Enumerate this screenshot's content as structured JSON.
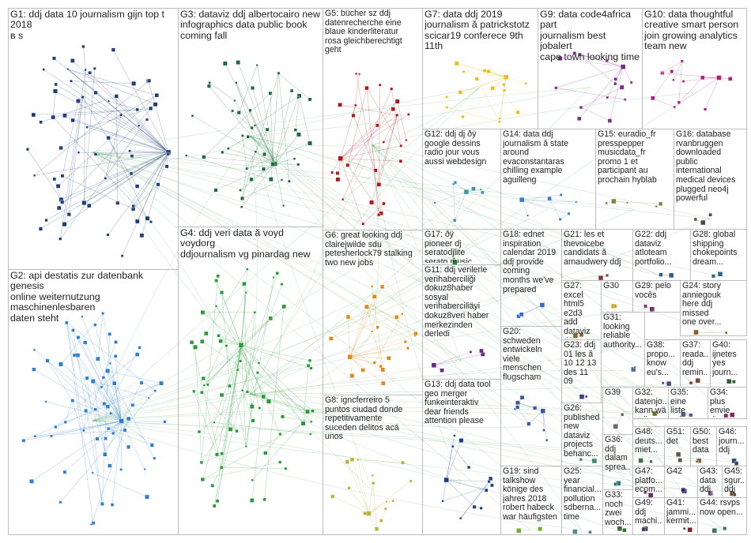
{
  "groups": [
    {
      "id": "G1",
      "label": "G1: ddj data 10 journalism gijn top t 2018\nв s",
      "color": "#1f3f7a"
    },
    {
      "id": "G2",
      "label": "G2: api destatis zur datenbank genesis\nonline weiternutzung maschinenlesbaren\ndaten steht",
      "color": "#2f7fcf"
    },
    {
      "id": "G3",
      "label": "G3: dataviz ddj albertocairo new\ninfographics data public book\ncoming fall",
      "color": "#1e6a3a"
    },
    {
      "id": "G4",
      "label": "G4: ddj veri data ă voyd voydorg\nddjournalism vg pinardag new",
      "color": "#2a9a3a"
    },
    {
      "id": "G5",
      "label": "G5: bücher sz ddj\ndatenrecherche eine\nblaue kinderliteratur\nrosa gleichberechtigt\ngeht",
      "color": "#b01818"
    },
    {
      "id": "G6",
      "label": "G6: great looking ddj\nclairejwilde sdu\npetesherlock79 stalking\ntwo new jobs",
      "color": "#e08a1c"
    },
    {
      "id": "G7",
      "label": "G7: data ddj 2019\njournalism ă patrickstotz\nscicar19 conferece 9th 11th",
      "color": "#e8c020"
    },
    {
      "id": "G8",
      "label": "G8: igncferreiro 5\npuntos ciudad donde\nrepetitivamente\nsuceden delitos acá\nunos",
      "color": "#b8b438"
    },
    {
      "id": "G9",
      "label": "G9: data code4africa part\njournalism best jobalert\ncape town looking time",
      "color": "#7a2a8a"
    },
    {
      "id": "G10",
      "label": "G10: data thoughtful\ncreative smart person\njoin growing analytics\nteam new",
      "color": "#b0207a"
    },
    {
      "id": "G11",
      "label": "G11: ddj verilerle\nverihaberciliği\ndokuz8haber\nsosyal\nverihaberciliäyi\ndokuz8veri haber\nmerkezinden\nderledi",
      "color": "#6a2a8a"
    },
    {
      "id": "G12",
      "label": "G12: ddj dj ðÿ\ngoogle dessins\nradio jour vous\naussi webdesign",
      "color": "#3a9aaa"
    },
    {
      "id": "G13",
      "label": "G13: ddj data tool\ngeo merger\nfunkeinteraktiv\ndear friends\nattention please",
      "color": "#1a3a8a"
    },
    {
      "id": "G14",
      "label": "G14: data ddj\njournalism ă state\naround\nevaconstantaras\nchilling example\naguilleng",
      "color": "#3a7acf"
    },
    {
      "id": "G15",
      "label": "G15: euradio_fr\npresspepper\nmusicdata_fr\npromo 1 et\nparticipant au\nprochain hyblab",
      "color": "#7a8a3a"
    },
    {
      "id": "G16",
      "label": "G16: database\nrvanbruggen\ndownloaded\npublic\ninternational\nmedical devices\nplugged neo4j\npowerful",
      "color": "#4a4a4a"
    },
    {
      "id": "G17",
      "label": "G17: ðÿ\npioneer dj\nseratodjlite\nserato music\ndjlife djing",
      "color": "#2a8a3a"
    },
    {
      "id": "G18",
      "label": "G18: ednet\ninspiration\ncalendar 2019\nddj provide\ncoming\nmonths we've\nprepared",
      "color": "#3a6acf"
    },
    {
      "id": "G19",
      "label": "G19: sind\ntalkshow\nkönige des\njahres 2018\nrobert habeck\nwar häufigsten",
      "color": "#7aaa3a"
    },
    {
      "id": "G20",
      "label": "G20:\nschweden\nentwickeln\nviele\nmenschen\nflugscham",
      "color": "#3a5a9a"
    },
    {
      "id": "G21",
      "label": "G21: les et\nthevoicebe\ncandidats ă\narnaudwery ddj",
      "color": "#8a3a3a"
    },
    {
      "id": "G22",
      "label": "G22: ddj\ndataviz\natloteam\nportfolio...",
      "color": "#2a5a8a"
    },
    {
      "id": "G23",
      "label": "G23: ddj\n01 les ă\n10 12 13\ndes 11\n09",
      "color": "#3a3a8a"
    },
    {
      "id": "G24",
      "label": "G24: story\nanniegouk\nhere ddj\nmissed\none over...",
      "color": "#8a5a2a"
    },
    {
      "id": "G25",
      "label": "G25:\nyear\nfinancial...\npollution\nsdberna...\ntime",
      "color": "#5a8a8a"
    },
    {
      "id": "G26",
      "label": "G26:\npublished\nnew\ndataviz\nprojects\nbehanc...",
      "color": "#3a8a6a"
    },
    {
      "id": "G27",
      "label": "G27: excel\nhtml5 e2d3\nadd\ndataviz\nd3js",
      "color": "#8a6a2a"
    },
    {
      "id": "G28",
      "label": "G28: global\nshipping\nchokepoints\ndream...",
      "color": "#2a6a8a"
    },
    {
      "id": "G29",
      "label": "G29: pelo\nvocês",
      "color": "#6a3a6a"
    },
    {
      "id": "G30",
      "label": "G30",
      "color": "#c8a020"
    },
    {
      "id": "G31",
      "label": "G31:\nlooking\nreliable\nauthority...",
      "color": "#4a6a8a"
    },
    {
      "id": "G32",
      "label": "G32:\ndatenjo...\nkann wä\nvoller...",
      "color": "#6a6a2a"
    },
    {
      "id": "G33",
      "label": "G33:\nnoch\nzwei\nwoch...",
      "color": "#3a6a3a"
    },
    {
      "id": "G34",
      "label": "G34: plus\nenvie\nd'en...",
      "color": "#8a2a5a"
    },
    {
      "id": "G35",
      "label": "G35: eine\nliste\nvoller...",
      "color": "#5a5a8a"
    },
    {
      "id": "G36",
      "label": "G36:\nddj\ndalam\nsprea...",
      "color": "#2a7a7a"
    },
    {
      "id": "G37",
      "label": "G37:\nreada...\nddj\nremin...",
      "color": "#7a4a3a"
    },
    {
      "id": "G38",
      "label": "G38:\npropo...\nknow\neu's...",
      "color": "#4a4a7a"
    },
    {
      "id": "G39",
      "label": "G39",
      "color": "#6a6a6a"
    },
    {
      "id": "G40",
      "label": "G40:\nijnetes\nyes\njourn...",
      "color": "#3a5a3a"
    },
    {
      "id": "G41",
      "label": "G41:\njammi...\nkermit...",
      "color": "#7a2a2a"
    },
    {
      "id": "G42",
      "label": "G42",
      "color": "#2a2a6a"
    },
    {
      "id": "G43",
      "label": "G43:\ndata\nddj",
      "color": "#5a3a7a"
    },
    {
      "id": "G44",
      "label": "G44: rsvps\nnow open...",
      "color": "#3a7a5a"
    },
    {
      "id": "G45",
      "label": "G45:\nsgur...\nddj",
      "color": "#6a4a2a"
    },
    {
      "id": "G46",
      "label": "G46:\njourn...\nddj",
      "color": "#2a4a6a"
    },
    {
      "id": "G47",
      "label": "G47:\nplatfo...\necom...",
      "color": "#6a2a6a"
    },
    {
      "id": "G48",
      "label": "G48:\ndeuts...\nmiet...",
      "color": "#4a6a4a"
    },
    {
      "id": "G49",
      "label": "G49:\nddj\nmachi...",
      "color": "#3a3a5a"
    },
    {
      "id": "G50",
      "label": "G50:\nbest\ndata",
      "color": "#7a6a3a"
    },
    {
      "id": "G51",
      "label": "G51:\ndet",
      "color": "#5a5a5a"
    }
  ]
}
